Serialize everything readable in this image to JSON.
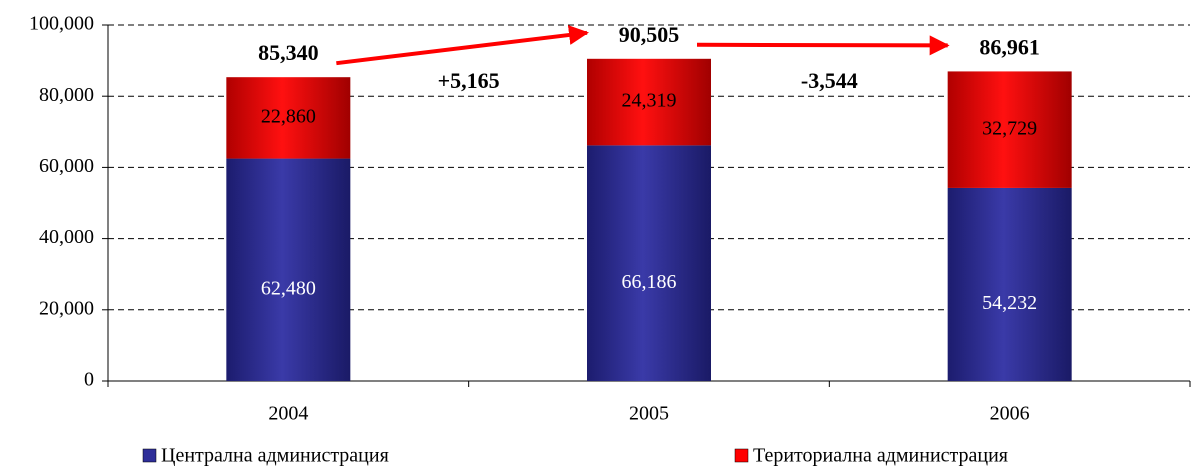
{
  "chart_data": {
    "type": "stacked_bar",
    "categories": [
      "2004",
      "2005",
      "2006"
    ],
    "series": [
      {
        "name": "Централна администрация",
        "color": "#2e2e99",
        "values": [
          62480,
          66186,
          54232
        ],
        "value_labels": [
          "62,480",
          "66,186",
          "54,232"
        ]
      },
      {
        "name": "Териториална администрация",
        "color": "#ff0000",
        "values": [
          22860,
          24319,
          32729
        ],
        "value_labels": [
          "22,860",
          "24,319",
          "32,729"
        ]
      }
    ],
    "totals": {
      "values": [
        85340,
        90505,
        86961
      ],
      "value_labels": [
        "85,340",
        "90,505",
        "86,961"
      ]
    },
    "changes": {
      "values": [
        5165,
        -3544
      ],
      "value_labels": [
        "+5,165",
        "-3,544"
      ]
    },
    "ylim": [
      0,
      100000
    ],
    "yticks": [
      0,
      {
        "value": 20000,
        "label": "20,000"
      },
      {
        "value": 40000,
        "label": "40,000"
      },
      {
        "value": 60000,
        "label": "60,000"
      },
      {
        "value": 80000,
        "label": "80,000"
      },
      {
        "value": 100000,
        "label": "100,000"
      }
    ],
    "grid": true,
    "legend": "bottom"
  }
}
